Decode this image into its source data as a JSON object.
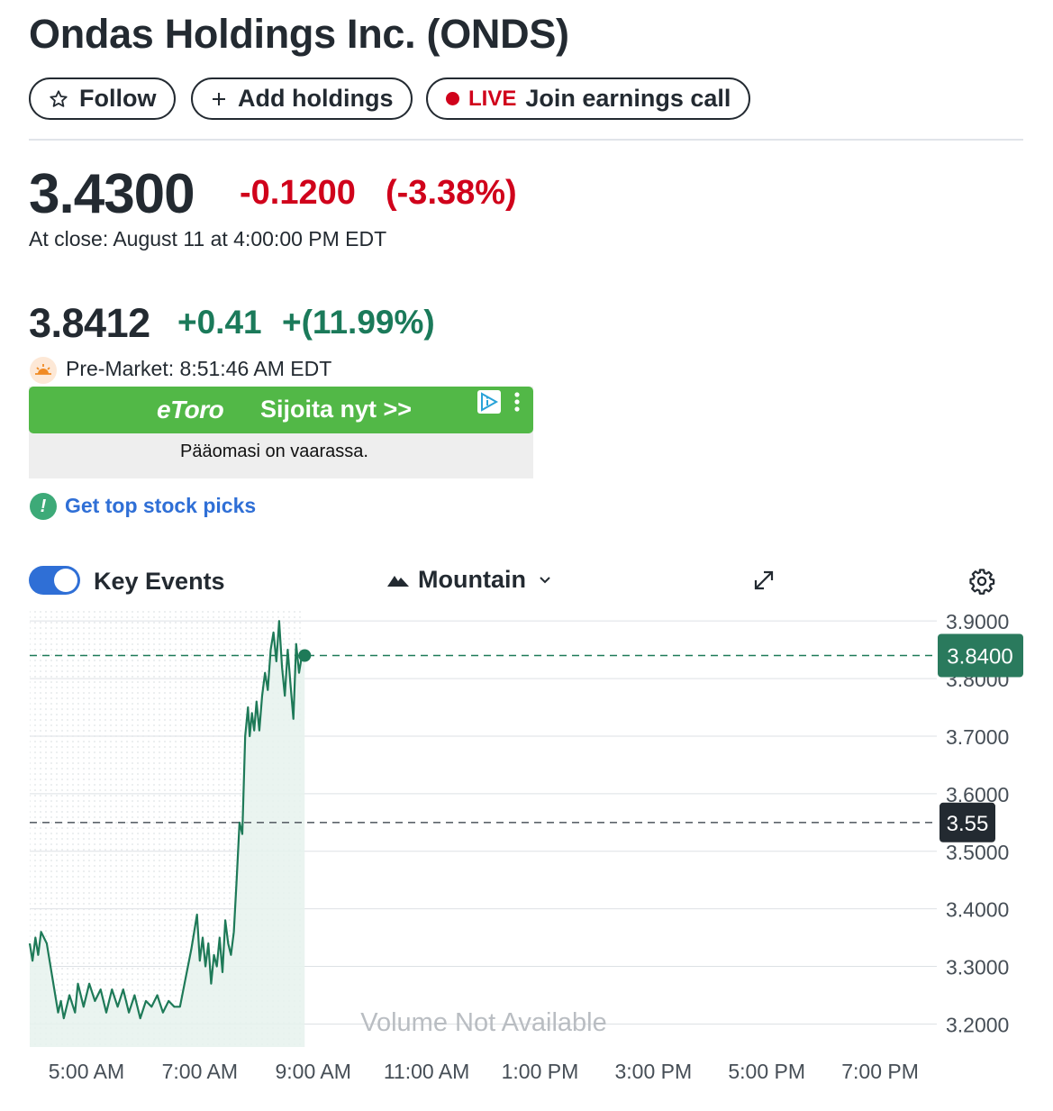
{
  "header": {
    "title": "Ondas Holdings Inc. (ONDS)",
    "follow_label": "Follow",
    "add_holdings_label": "Add holdings",
    "live_label": "LIVE",
    "earnings_label": "Join earnings call"
  },
  "quote": {
    "price": "3.4300",
    "change": "-0.1200",
    "change_percent": "(-3.38%)",
    "close_note": "At close: August 11 at 4:00:00 PM EDT"
  },
  "premarket": {
    "price": "3.8412",
    "change": "+0.41",
    "change_percent": "+(11.99%)",
    "note": "Pre-Market: 8:51:46 AM EDT"
  },
  "ad": {
    "brand": "eToro",
    "cta": "Sijoita nyt >>",
    "warning": "Pääomasi on vaarassa.",
    "brand_color": "#52b847"
  },
  "picks_link": "Get top stock picks",
  "chart_controls": {
    "key_events_label": "Key Events",
    "key_events_on": true,
    "chart_type_label": "Mountain"
  },
  "colors": {
    "negative": "#d0021b",
    "positive": "#1b7a5a",
    "accent": "#2f6fd6",
    "line": "#1e7a58"
  },
  "chart_data": {
    "type": "area",
    "x_ticks": [
      "5:00 AM",
      "7:00 AM",
      "9:00 AM",
      "11:00 AM",
      "1:00 PM",
      "3:00 PM",
      "5:00 PM",
      "7:00 PM"
    ],
    "y_ticks": [
      "3.2000",
      "3.3000",
      "3.4000",
      "3.5000",
      "3.6000",
      "3.7000",
      "3.8000",
      "3.9000"
    ],
    "ylim": [
      3.16,
      3.93
    ],
    "xlim_hours": [
      4.0,
      20.0
    ],
    "current_label": "3.8400",
    "current_value": 3.84,
    "prev_close_label": "3.55",
    "prev_close_value": 3.55,
    "volume_note": "Volume Not Available",
    "grid": true,
    "series": [
      {
        "x": [
          4.0,
          4.05,
          4.1,
          4.15,
          4.2,
          4.3,
          4.4,
          4.5,
          4.55,
          4.6,
          4.7,
          4.8,
          4.85,
          4.95,
          5.05,
          5.15,
          5.25,
          5.35,
          5.45,
          5.55,
          5.65,
          5.75,
          5.85,
          5.95,
          6.05,
          6.15,
          6.25,
          6.35,
          6.45,
          6.55,
          6.65,
          6.75,
          6.85,
          6.95,
          7.0,
          7.05,
          7.1,
          7.15,
          7.2,
          7.25,
          7.3,
          7.35,
          7.4,
          7.45,
          7.5,
          7.55,
          7.6,
          7.65,
          7.7,
          7.75,
          7.8,
          7.85,
          7.88,
          7.92,
          7.96,
          8.0,
          8.05,
          8.1,
          8.15,
          8.2,
          8.25,
          8.3,
          8.35,
          8.4,
          8.45,
          8.5,
          8.55,
          8.6,
          8.65,
          8.7,
          8.75,
          8.8,
          8.85
        ],
        "y": [
          3.34,
          3.31,
          3.35,
          3.32,
          3.36,
          3.34,
          3.28,
          3.22,
          3.24,
          3.21,
          3.25,
          3.22,
          3.27,
          3.23,
          3.27,
          3.24,
          3.26,
          3.22,
          3.26,
          3.23,
          3.26,
          3.22,
          3.25,
          3.21,
          3.24,
          3.23,
          3.25,
          3.22,
          3.24,
          3.23,
          3.23,
          3.28,
          3.33,
          3.39,
          3.31,
          3.35,
          3.3,
          3.34,
          3.27,
          3.32,
          3.3,
          3.35,
          3.29,
          3.38,
          3.34,
          3.32,
          3.36,
          3.45,
          3.55,
          3.53,
          3.7,
          3.75,
          3.7,
          3.74,
          3.71,
          3.76,
          3.71,
          3.77,
          3.81,
          3.78,
          3.85,
          3.88,
          3.83,
          3.9,
          3.82,
          3.77,
          3.85,
          3.79,
          3.73,
          3.86,
          3.81,
          3.84,
          3.84
        ],
        "fill_color": "#e6f2ed"
      }
    ]
  }
}
